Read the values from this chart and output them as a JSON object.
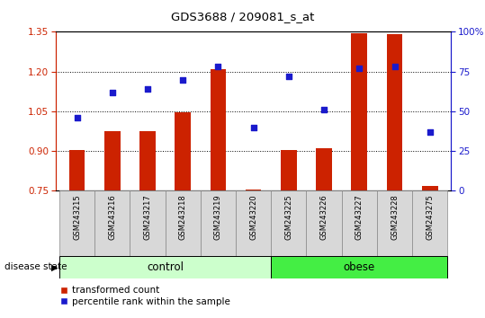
{
  "title": "GDS3688 / 209081_s_at",
  "samples": [
    "GSM243215",
    "GSM243216",
    "GSM243217",
    "GSM243218",
    "GSM243219",
    "GSM243220",
    "GSM243225",
    "GSM243226",
    "GSM243227",
    "GSM243228",
    "GSM243275"
  ],
  "bar_values": [
    0.905,
    0.975,
    0.975,
    1.045,
    1.21,
    0.755,
    0.905,
    0.91,
    1.345,
    1.34,
    0.77
  ],
  "dot_values": [
    46,
    62,
    64,
    70,
    78,
    40,
    72,
    51,
    77,
    78,
    37
  ],
  "bar_color": "#cc2200",
  "dot_color": "#1a1acc",
  "ylim_left": [
    0.75,
    1.35
  ],
  "ylim_right": [
    0,
    100
  ],
  "yticks_left": [
    0.75,
    0.9,
    1.05,
    1.2,
    1.35
  ],
  "yticks_right": [
    0,
    25,
    50,
    75,
    100
  ],
  "ytick_labels_right": [
    "0",
    "25",
    "50",
    "75",
    "100%"
  ],
  "control_label": "control",
  "obese_label": "obese",
  "disease_state_label": "disease state",
  "legend_bar_label": "transformed count",
  "legend_dot_label": "percentile rank within the sample",
  "control_color": "#ccffcc",
  "obese_color": "#44ee44",
  "bar_bottom": 0.75,
  "n_control": 6,
  "bar_width": 0.45
}
